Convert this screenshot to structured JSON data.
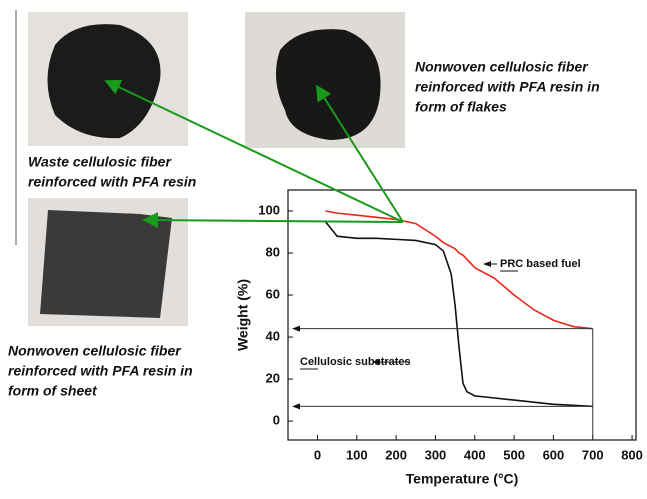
{
  "captions": {
    "flakes": [
      "Nonwoven cellulosic fiber",
      "reinforced with PFA resin in",
      "form of flakes"
    ],
    "waste": [
      "Waste cellulosic fiber",
      "reinforced with PFA resin"
    ],
    "sheet": [
      "Nonwoven cellulosic fiber",
      "reinforced with PFA resin in",
      "form of sheet"
    ]
  },
  "chart_data": {
    "type": "line",
    "x_label": "Temperature (°C)",
    "y_label": "Weight (%)",
    "x": [
      20,
      50,
      100,
      150,
      200,
      250,
      300,
      320,
      340,
      350,
      360,
      370,
      380,
      400,
      450,
      500,
      550,
      600,
      650,
      700
    ],
    "series": [
      {
        "name": "Cellulosic substrates",
        "color": "#111111",
        "values": [
          95,
          88,
          87,
          87,
          86.5,
          86,
          84,
          81,
          70,
          55,
          35,
          18,
          14,
          12,
          11,
          10,
          9,
          8,
          7.5,
          7
        ]
      },
      {
        "name": "PRC based fuel",
        "color": "#e8261c",
        "values": [
          100,
          99,
          98,
          97,
          96,
          94,
          88,
          85,
          83,
          82,
          80,
          79,
          77,
          73,
          68,
          60,
          53,
          48,
          45,
          44
        ]
      }
    ],
    "xlim": [
      -75,
      810
    ],
    "ylim": [
      -9,
      110
    ],
    "xticks": [
      0,
      100,
      200,
      300,
      400,
      500,
      600,
      700,
      800
    ],
    "yticks": [
      0,
      20,
      40,
      60,
      80,
      100
    ]
  }
}
